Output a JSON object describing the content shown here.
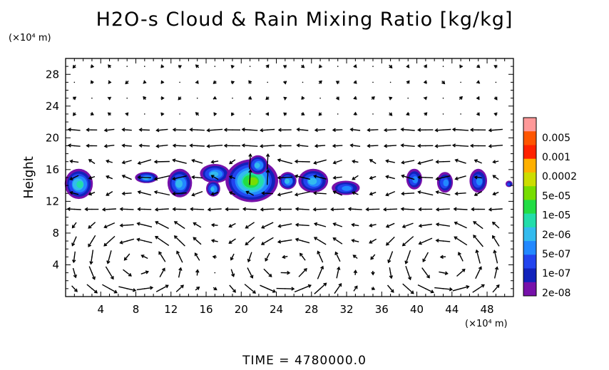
{
  "chart_data": {
    "type": "heatmap",
    "title": "H2O-s Cloud & Rain Mixing Ratio [kg/kg]",
    "xlabel": "",
    "ylabel": "Height",
    "x_unit_label": "(×10⁴ m)",
    "y_unit_label": "(×10⁴ m)",
    "xlim": [
      0,
      51
    ],
    "ylim": [
      0,
      30
    ],
    "x_ticks": [
      4,
      8,
      12,
      16,
      20,
      24,
      28,
      32,
      36,
      40,
      44,
      48
    ],
    "y_ticks": [
      4,
      8,
      12,
      16,
      20,
      24,
      28
    ],
    "grid": "dotted",
    "legend": {
      "placement": "right",
      "levels": [
        "0.005",
        "0.001",
        "0.0002",
        "5e-05",
        "1e-05",
        "2e-06",
        "5e-07",
        "1e-07",
        "2e-08"
      ],
      "colors": [
        "#ff9999",
        "#ff5500",
        "#ff2200",
        "#ffb000",
        "#ccdd00",
        "#77dd00",
        "#22dd44",
        "#22ddaa",
        "#33bbee",
        "#2288ff",
        "#2244ee",
        "#1122bb",
        "#7711aa"
      ]
    },
    "blobs": [
      {
        "x": 1.5,
        "y": 14.2,
        "rx": 1.6,
        "ry": 1.9,
        "level": 6
      },
      {
        "x": 9.2,
        "y": 15.0,
        "rx": 1.3,
        "ry": 0.7,
        "level": 5
      },
      {
        "x": 13.0,
        "y": 14.3,
        "rx": 1.4,
        "ry": 1.8,
        "level": 5
      },
      {
        "x": 17.0,
        "y": 15.5,
        "rx": 1.7,
        "ry": 1.2,
        "level": 5
      },
      {
        "x": 16.8,
        "y": 13.6,
        "rx": 0.8,
        "ry": 1.0,
        "level": 5
      },
      {
        "x": 21.2,
        "y": 14.6,
        "rx": 3.0,
        "ry": 2.7,
        "level": 8
      },
      {
        "x": 21.9,
        "y": 16.6,
        "rx": 1.1,
        "ry": 1.2,
        "level": 5
      },
      {
        "x": 25.3,
        "y": 14.6,
        "rx": 1.0,
        "ry": 1.1,
        "level": 5
      },
      {
        "x": 28.2,
        "y": 14.6,
        "rx": 1.7,
        "ry": 1.5,
        "level": 5
      },
      {
        "x": 31.9,
        "y": 13.7,
        "rx": 1.6,
        "ry": 0.9,
        "level": 4
      },
      {
        "x": 39.7,
        "y": 14.8,
        "rx": 0.9,
        "ry": 1.3,
        "level": 4
      },
      {
        "x": 43.2,
        "y": 14.4,
        "rx": 0.9,
        "ry": 1.3,
        "level": 4
      },
      {
        "x": 47.0,
        "y": 14.6,
        "rx": 1.0,
        "ry": 1.5,
        "level": 4
      },
      {
        "x": 50.5,
        "y": 14.2,
        "rx": 0.4,
        "ry": 0.4,
        "level": 3
      }
    ]
  },
  "footer": {
    "time_label": "TIME  =  4780000.0"
  }
}
